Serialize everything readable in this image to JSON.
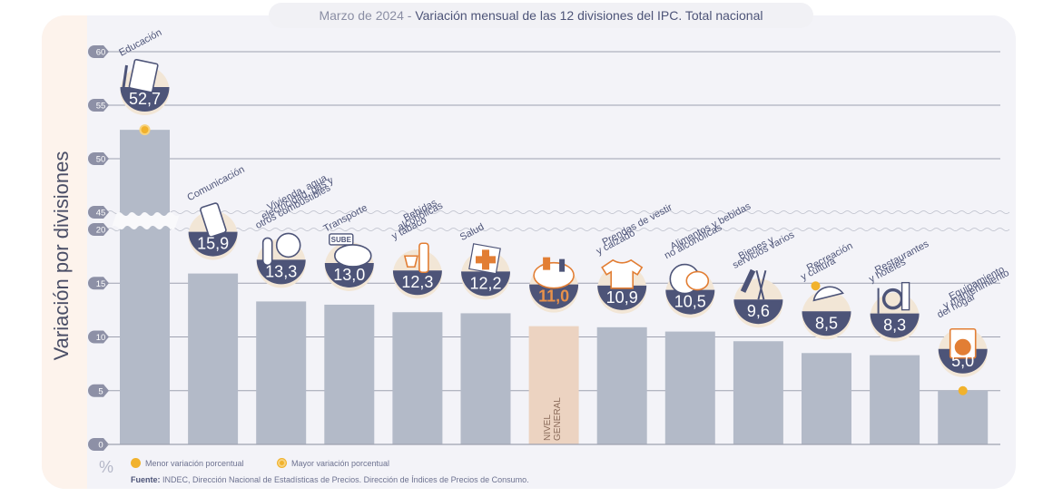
{
  "title": {
    "period": "Marzo de 2024",
    "separator": " - ",
    "text": "Variación mensual de las 12 divisiones del IPC. Total nacional"
  },
  "axis": {
    "ylabel": "Variación por divisiones",
    "unit": "%"
  },
  "legend": {
    "min_label": "Menor variación porcentual",
    "max_label": "Mayor variación porcentual"
  },
  "source": {
    "label": "Fuente:",
    "text": " INDEC, Dirección Nacional de Estadísticas de Precios. Dirección de Índices de Precios de Consumo."
  },
  "colors": {
    "bar": "#b3bac8",
    "bar_general": "#ecd3c1",
    "badge": "#4d5478",
    "badge_text_general": "#e8914a",
    "icon_accent": "#e27e34",
    "dot": "#f1b22d",
    "grid": "#9ea2b0",
    "tick_bubble": "#8d90a6"
  },
  "chart_data": {
    "type": "bar",
    "title": "Marzo de 2024 - Variación mensual de las 12 divisiones del IPC. Total nacional",
    "xlabel": "",
    "ylabel": "Variación por divisiones (%)",
    "ylim": [
      0,
      60
    ],
    "axis_break": [
      20,
      45
    ],
    "yticks": [
      0,
      5,
      10,
      15,
      20,
      45,
      50,
      55,
      60
    ],
    "grid": true,
    "legend_position": "bottom-left",
    "categories": [
      "Educación",
      "Comunicación",
      "Vivienda, agua, electricidad, gas y otros combustibles",
      "Transporte",
      "Bebidas alcohólicas y tabaco",
      "Salud",
      "Nivel general",
      "Prendas de vestir y calzado",
      "Alimentos y bebidas no alcohólicas",
      "Bienes y servicios varios",
      "Recreación y cultura",
      "Restaurantes y hoteles",
      "Equipamiento y mantenimiento del hogar"
    ],
    "category_label_lines": [
      [
        "Educación"
      ],
      [
        "Comunicación"
      ],
      [
        "Vivienda, agua,",
        "electricidad, gas y",
        "otros combustibles"
      ],
      [
        "Transporte"
      ],
      [
        "Bebidas",
        "alcohólicas",
        "y tabaco"
      ],
      [
        "Salud"
      ],
      [
        "NIVEL",
        "GENERAL"
      ],
      [
        "Prendas de vestir",
        "y calzado"
      ],
      [
        "Alimentos y bebidas",
        "no alcohólicas"
      ],
      [
        "Bienes y",
        "servicios varios"
      ],
      [
        "Recreación",
        "y cultura"
      ],
      [
        "Restaurantes",
        "y hoteles"
      ],
      [
        "Equipamiento",
        "y mantenimiento",
        "del hogar"
      ]
    ],
    "values": [
      52.7,
      15.9,
      13.3,
      13.0,
      12.3,
      12.2,
      11.0,
      10.9,
      10.5,
      9.6,
      8.5,
      8.3,
      5.0
    ],
    "value_labels": [
      "52,7",
      "15,9",
      "13,3",
      "13,0",
      "12,3",
      "12,2",
      "11,0",
      "10,9",
      "10,5",
      "9,6",
      "8,5",
      "8,3",
      "5,0"
    ],
    "icons": [
      "book-icon",
      "smartphone-icon",
      "key-lightbulb-icon",
      "bus-sube-icon",
      "wine-cigarette-icon",
      "first-aid-icon",
      "shopping-basket-icon",
      "tshirt-icon",
      "chicken-food-icon",
      "comb-scissors-icon",
      "sun-umbrella-icon",
      "plate-cutlery-icon",
      "washing-machine-icon"
    ],
    "highlight": {
      "max_index": 0,
      "min_index": 12,
      "general_index": 6
    }
  }
}
